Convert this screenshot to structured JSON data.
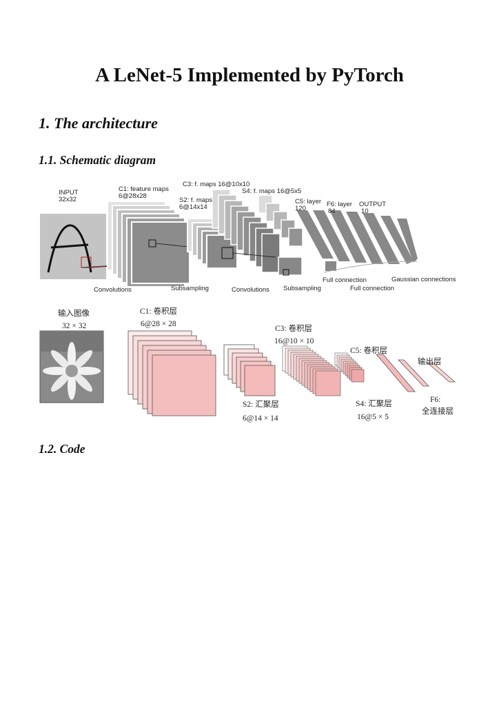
{
  "document": {
    "title": "A LeNet-5 Implemented by PyTorch",
    "section_heading": "1. The architecture",
    "subsection_diagram": "1.1. Schematic diagram",
    "subsection_code": "1.2. Code"
  },
  "lenet_figure": {
    "input_label": "INPUT",
    "input_size": "32x32",
    "c1_label": "C1: feature maps",
    "c1_size": "6@28x28",
    "c3_label": "C3: f. maps 16@10x10",
    "s2_label": "S2: f. maps",
    "s2_size": "6@14x14",
    "s4_label": "S4: f. maps 16@5x5",
    "c5_label": "C5: layer",
    "c5_size": "120",
    "f6_label": "F6: layer",
    "f6_size": "84",
    "output_label": "OUTPUT",
    "output_size": "10",
    "bottom_convolutions_1": "Convolutions",
    "bottom_subsampling_1": "Subsampling",
    "bottom_convolutions_2": "Convolutions",
    "bottom_subsampling_2": "Subsampling",
    "bottom_full_connection_1": "Full connection",
    "bottom_full_connection_2": "Full connection",
    "bottom_gaussian": "Gaussian connections"
  },
  "cn_figure": {
    "input_label": "输入图像",
    "input_size": "32 × 32",
    "c1_label": "C1: 卷积层",
    "c1_size": "6@28 × 28",
    "c3_label": "C3: 卷积层",
    "c3_size": "16@10 × 10",
    "c5_label": "C5: 卷积层",
    "output_label": "输出层",
    "s2_label": "S2: 汇聚层",
    "s2_size": "6@14 × 14",
    "s4_label": "S4: 汇聚层",
    "s4_size": "16@5 × 5",
    "f6_label": "F6:",
    "f6_desc": "全连接层"
  }
}
